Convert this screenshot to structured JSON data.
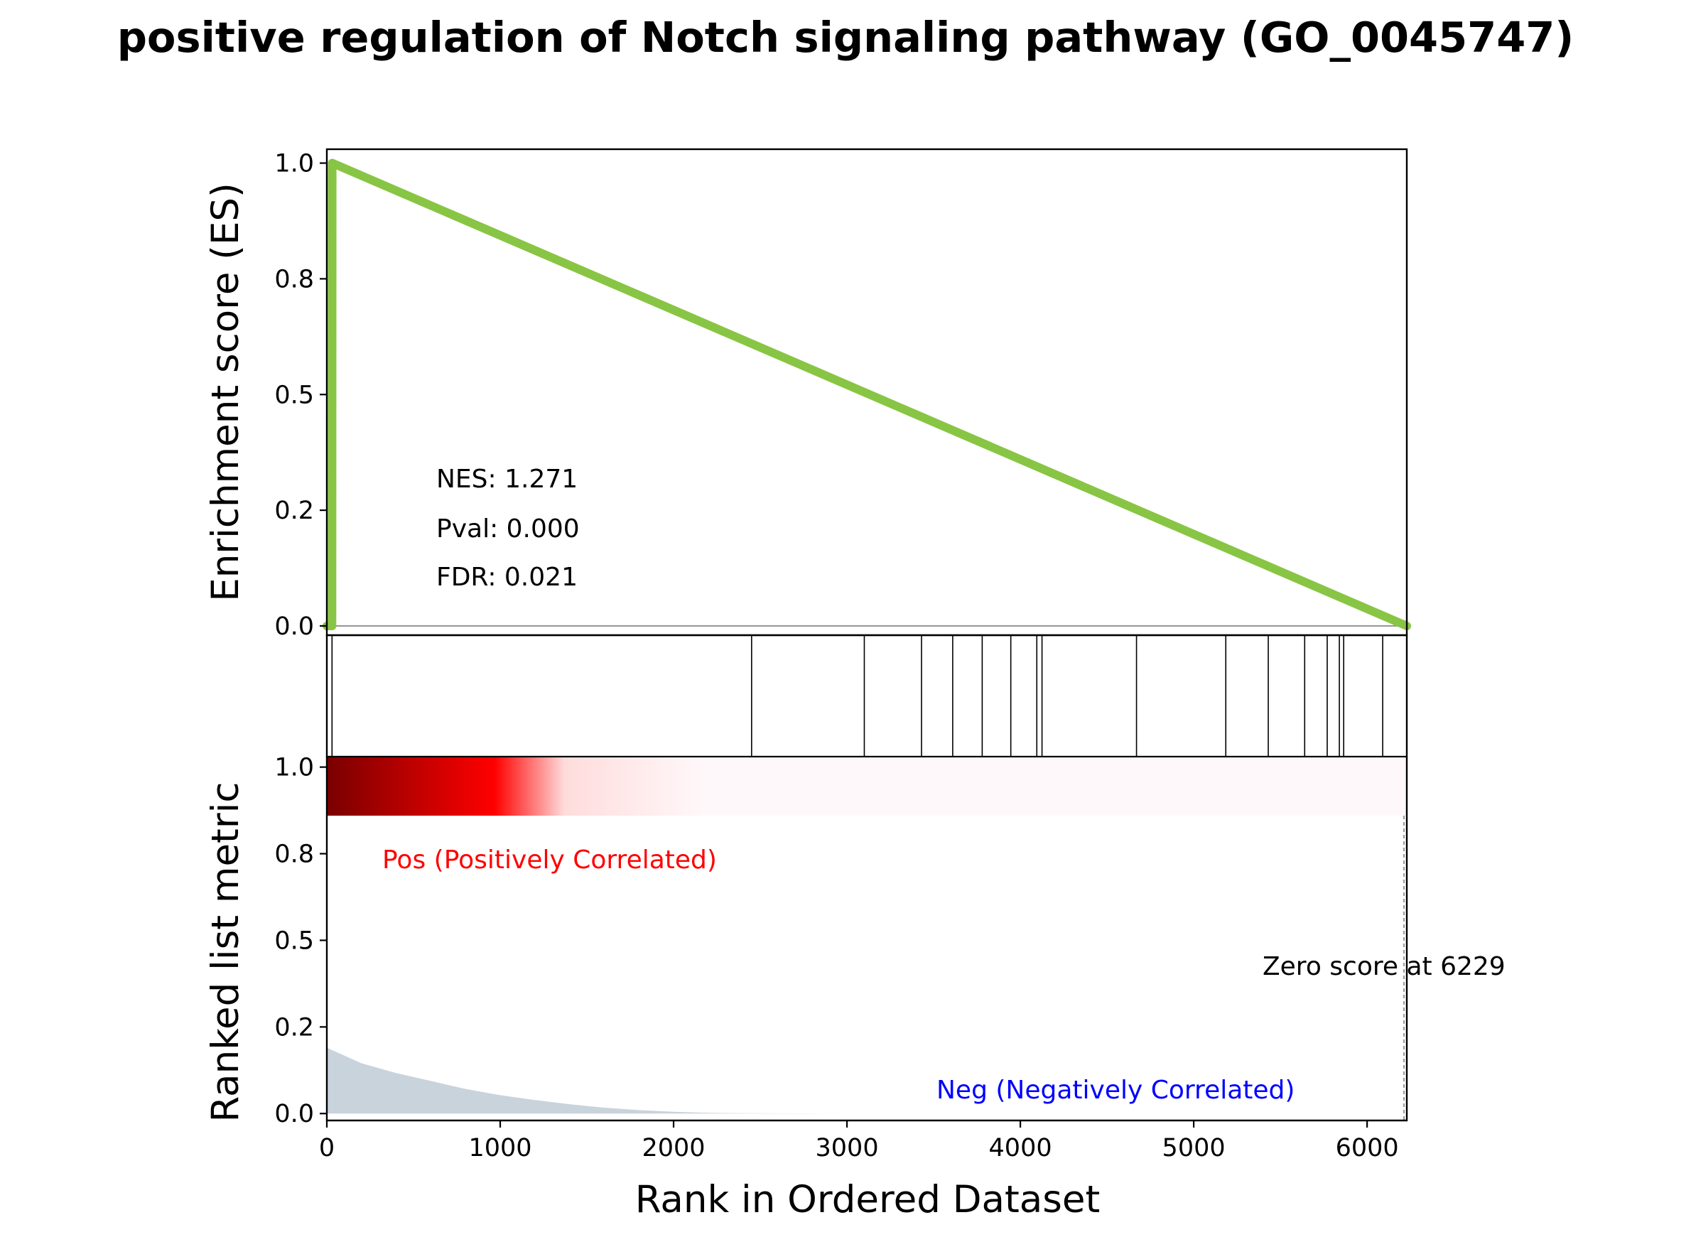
{
  "figure": {
    "title": "positive regulation of Notch signaling pathway (GO_0045747)"
  },
  "chart_data": {
    "type": "line",
    "title": "positive regulation of Notch signaling pathway (GO_0045747)",
    "xlabel": "Rank in Ordered Dataset",
    "xlim": [
      0,
      6229
    ],
    "x_ticks": [
      0,
      1000,
      2000,
      3000,
      4000,
      5000,
      6000
    ],
    "x_tick_labels": [
      "0",
      "1000",
      "2000",
      "3000",
      "4000",
      "5000",
      "6000"
    ],
    "es_panel": {
      "ylabel": "Enrichment score (ES)",
      "ylim": [
        -0.02,
        1.03
      ],
      "y_ticks": [
        0.0,
        0.25,
        0.5,
        0.75,
        1.0
      ],
      "y_tick_labels": [
        "0.0",
        "0.2",
        "0.5",
        "0.8",
        "1.0"
      ],
      "line_color": "#88c544",
      "series": [
        {
          "x": [
            0,
            30,
            31,
            2450,
            6229
          ],
          "y": [
            0.0,
            0.0,
            1.0,
            0.61,
            0.0
          ]
        }
      ],
      "baseline": 0.0
    },
    "statistics": {
      "nes": "NES: 1.271",
      "pval": "Pval: 0.000",
      "fdr": "FDR: 0.021"
    },
    "hits": [
      30,
      2450,
      3100,
      3430,
      3610,
      3780,
      3945,
      4095,
      4125,
      4670,
      5185,
      5430,
      5640,
      5770,
      5840,
      5865,
      6090
    ],
    "hit_line_color": "#000000",
    "heatmap": {
      "colors": [
        "#7a0000",
        "#ff0000",
        "#ffdcdc",
        "#fff8fa"
      ],
      "color_stops": [
        0.0,
        0.155,
        0.22,
        0.35
      ]
    },
    "metric_panel": {
      "ylabel": "Ranked list metric",
      "ylim": [
        -0.02,
        1.03
      ],
      "y_ticks": [
        0.0,
        0.25,
        0.5,
        0.75,
        1.0
      ],
      "y_tick_labels": [
        "0.0",
        "0.2",
        "0.5",
        "0.8",
        "1.0"
      ],
      "fill_color": "#c9d3dc",
      "x": [
        0,
        200,
        400,
        600,
        800,
        1000,
        1200,
        1400,
        1600,
        1800,
        2000,
        2200,
        2400,
        3000,
        4000,
        5000,
        6229
      ],
      "values": [
        0.19,
        0.145,
        0.117,
        0.094,
        0.071,
        0.053,
        0.039,
        0.027,
        0.017,
        0.01,
        0.005,
        0.002,
        0.001,
        0.0,
        0.0,
        0.0,
        0.0
      ],
      "zero_score_rank": 6229,
      "pos_label": "Pos (Positively Correlated)",
      "neg_label": "Neg (Negatively Correlated)",
      "zero_label": "Zero score at 6229",
      "pos_color": "#ff0000",
      "neg_color": "#0000ff"
    }
  }
}
